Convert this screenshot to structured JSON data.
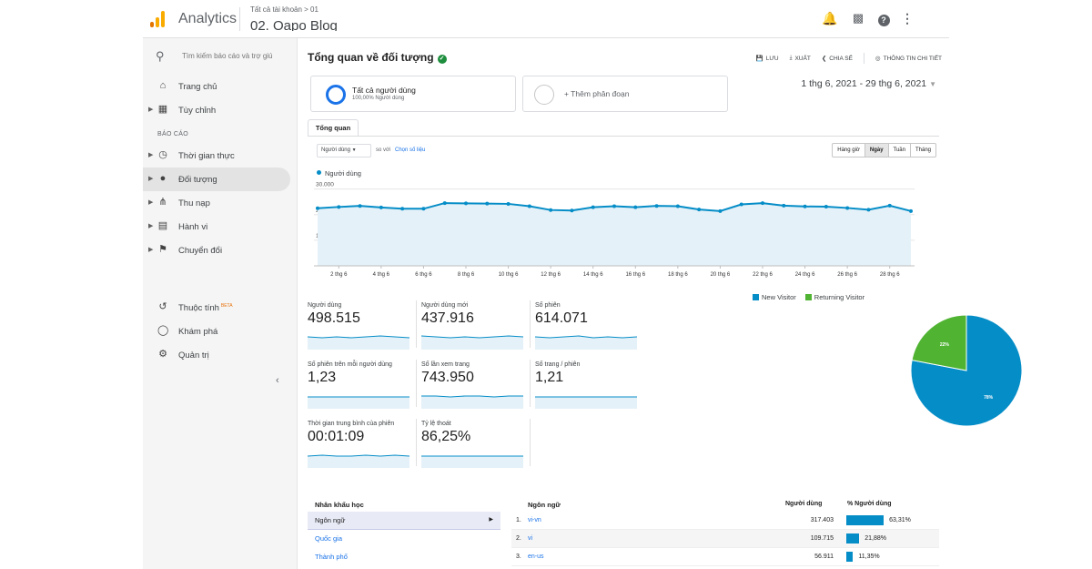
{
  "topbar": {
    "app_name": "Analytics",
    "breadcrumb": "Tất cả tài khoản > 01",
    "property": "02. Oapo Blog",
    "icons": [
      "bell-icon",
      "apps-icon",
      "help-icon",
      "more-vert-icon"
    ]
  },
  "sidebar": {
    "search_placeholder": "Tìm kiếm báo cáo và trợ giú",
    "home": "Trang chủ",
    "custom": "Tùy chỉnh",
    "section": "BÁO CÁO",
    "reports": [
      {
        "label": "Thời gian thực",
        "icon": "clock-icon"
      },
      {
        "label": "Đối tượng",
        "icon": "person-icon",
        "active": true
      },
      {
        "label": "Thu nạp",
        "icon": "acquisition-icon"
      },
      {
        "label": "Hành vi",
        "icon": "behavior-icon"
      },
      {
        "label": "Chuyển đổi",
        "icon": "flag-icon"
      }
    ],
    "attribution": "Thuộc tính",
    "beta": "BETA",
    "discover": "Khám phá",
    "admin": "Quản trị"
  },
  "main": {
    "title": "Tổng quan về đối tượng",
    "actions": {
      "save": "LƯU",
      "export": "XUẤT",
      "share": "CHIA SẺ",
      "insights": "THÔNG TIN CHI TIẾT"
    },
    "segment": {
      "title": "Tất cả người dùng",
      "subtitle": "100,00% Người dùng",
      "add": "+ Thêm phân đoạn"
    },
    "date_range": "1 thg 6, 2021 - 29 thg 6, 2021",
    "tab": "Tổng quan",
    "metric": "Người dùng",
    "vs": "so với",
    "choose_metric": "Chọn số liệu",
    "granularity": [
      "Hàng giờ",
      "Ngày",
      "Tuần",
      "Tháng"
    ],
    "granularity_selected": "Ngày"
  },
  "chart_data": [
    {
      "type": "line",
      "series": [
        {
          "name": "Người dùng",
          "color": "#058dc7",
          "values": [
            22500,
            23000,
            23400,
            22800,
            22300,
            22300,
            24500,
            24400,
            24300,
            24200,
            23300,
            21800,
            21600,
            22900,
            23300,
            22900,
            23400,
            23300,
            22000,
            21400,
            24000,
            24500,
            23500,
            23200,
            23100,
            22600,
            21900,
            23500,
            21400
          ]
        }
      ],
      "x": [
        "1 thg 6",
        "2 thg 6",
        "3 thg 6",
        "4 thg 6",
        "5 thg 6",
        "6 thg 6",
        "7 thg 6",
        "8 thg 6",
        "9 thg 6",
        "10 thg 6",
        "11 thg 6",
        "12 thg 6",
        "13 thg 6",
        "14 thg 6",
        "15 thg 6",
        "16 thg 6",
        "17 thg 6",
        "18 thg 6",
        "19 thg 6",
        "20 thg 6",
        "21 thg 6",
        "22 thg 6",
        "23 thg 6",
        "24 thg 6",
        "25 thg 6",
        "26 thg 6",
        "27 thg 6",
        "28 thg 6",
        "29 thg 6"
      ],
      "x_tick_labels": [
        "2 thg 6",
        "4 thg 6",
        "6 thg 6",
        "8 thg 6",
        "10 thg 6",
        "12 thg 6",
        "14 thg 6",
        "16 thg 6",
        "18 thg 6",
        "20 thg 6",
        "22 thg 6",
        "24 thg 6",
        "26 thg 6",
        "28 thg 6"
      ],
      "y_tick_labels": [
        "30.000",
        "20.000",
        "10.000"
      ],
      "ylim": [
        0,
        32000
      ]
    },
    {
      "type": "pie",
      "categories": [
        "New Visitor",
        "Returning Visitor"
      ],
      "values": [
        78,
        22
      ],
      "labels": [
        "78%",
        "22%"
      ],
      "colors": [
        "#058dc7",
        "#50b432"
      ]
    }
  ],
  "scorecards": [
    {
      "label": "Người dùng",
      "value": "498.515"
    },
    {
      "label": "Người dùng mới",
      "value": "437.916"
    },
    {
      "label": "Số phiên",
      "value": "614.071"
    },
    {
      "label": "Số phiên trên mỗi người dùng",
      "value": "1,23"
    },
    {
      "label": "Số lần xem trang",
      "value": "743.950"
    },
    {
      "label": "Số trang / phiên",
      "value": "1,21"
    },
    {
      "label": "Thời gian trung bình của phiên",
      "value": "00:01:09"
    },
    {
      "label": "Tỷ lệ thoát",
      "value": "86,25%"
    }
  ],
  "demographics": {
    "header": "Nhân khẩu học",
    "items": [
      "Ngôn ngữ",
      "Quốc gia",
      "Thành phố"
    ],
    "selected": "Ngôn ngữ"
  },
  "language_table": {
    "header": "Ngôn ngữ",
    "col_users": "Người dùng",
    "col_pct": "% Người dùng",
    "rows": [
      {
        "rank": "1.",
        "lang": "vi-vn",
        "users": "317.403",
        "pct": "63,31%",
        "share": 63.31
      },
      {
        "rank": "2.",
        "lang": "vi",
        "users": "109.715",
        "pct": "21,88%",
        "share": 21.88
      },
      {
        "rank": "3.",
        "lang": "en-us",
        "users": "56.911",
        "pct": "11,35%",
        "share": 11.35
      }
    ]
  }
}
